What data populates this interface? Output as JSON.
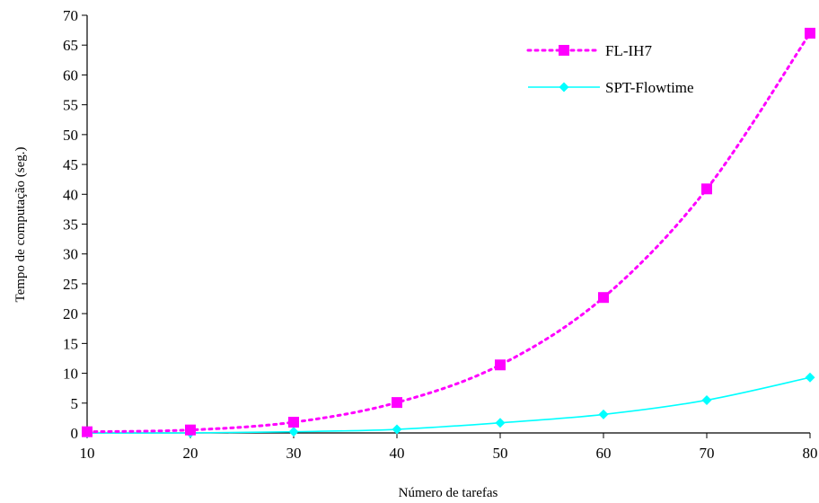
{
  "chart_data": {
    "type": "line",
    "x": [
      10,
      20,
      30,
      40,
      50,
      60,
      70,
      80
    ],
    "series": [
      {
        "name": "FL-IH7",
        "values": [
          0.2,
          0.5,
          1.8,
          5.1,
          11.4,
          22.7,
          40.9,
          67.0
        ],
        "color": "#ff00ff",
        "marker": "square",
        "line_style": "dotted"
      },
      {
        "name": "SPT-Flowtime",
        "values": [
          0.0,
          0.0,
          0.2,
          0.6,
          1.7,
          3.1,
          5.5,
          9.3
        ],
        "color": "#00ffff",
        "marker": "diamond",
        "line_style": "solid"
      }
    ],
    "xlabel": "Número de tarefas",
    "ylabel": "Tempo de computação (seg.)",
    "xlim": [
      10,
      80
    ],
    "ylim": [
      0,
      70
    ],
    "xticks": [
      "10",
      "20",
      "30",
      "40",
      "50",
      "60",
      "70",
      "80"
    ],
    "yticks": [
      "0",
      "5",
      "10",
      "15",
      "20",
      "25",
      "30",
      "35",
      "40",
      "45",
      "50",
      "55",
      "60",
      "65",
      "70"
    ],
    "grid": false,
    "legend_position": "top-right"
  }
}
